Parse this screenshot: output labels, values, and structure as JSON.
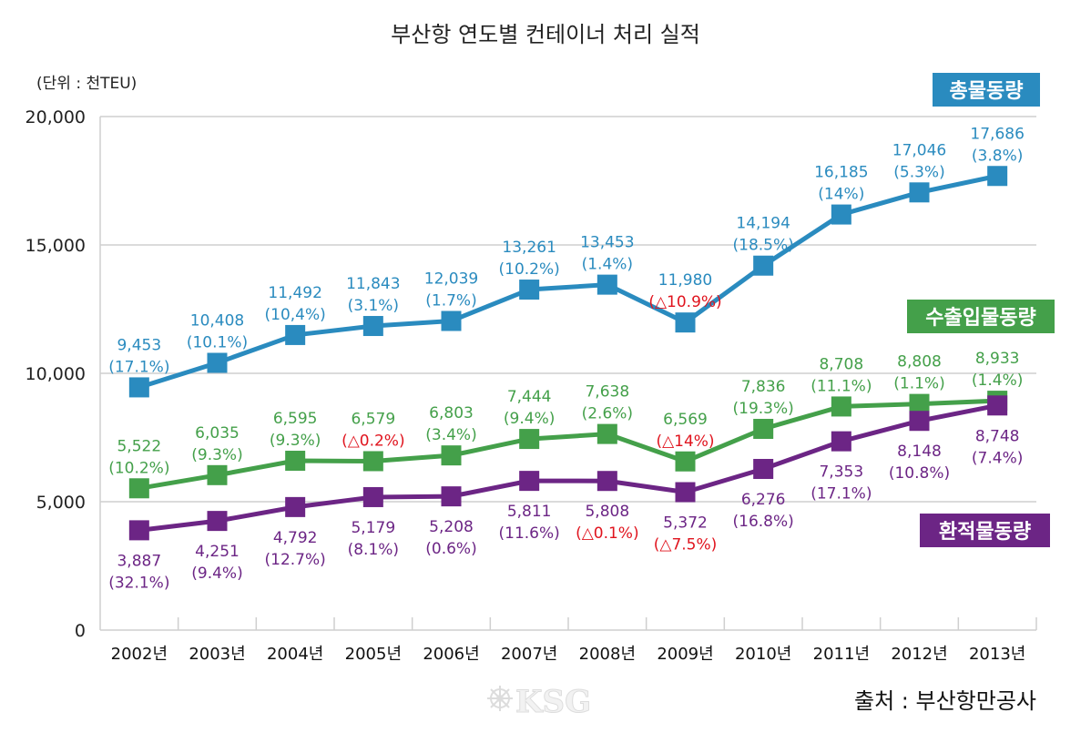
{
  "chart_data": {
    "type": "line",
    "title": "부산항 연도별 컨테이너 처리 실적",
    "unit_label": "(단위 : 천TEU)",
    "xlabel": "",
    "ylabel": "",
    "ylim": [
      0,
      20000
    ],
    "yticks": [
      0,
      5000,
      10000,
      15000,
      20000
    ],
    "ytick_labels": [
      "0",
      "5,000",
      "10,000",
      "15,000",
      "20,000"
    ],
    "grid": true,
    "categories": [
      "2002년",
      "2003년",
      "2004년",
      "2005년",
      "2006년",
      "2007년",
      "2008년",
      "2009년",
      "2010년",
      "2011년",
      "2012년",
      "2013년"
    ],
    "negative_color": "#e0141e",
    "series": [
      {
        "name": "총물동량",
        "color": "#2a8bbf",
        "label_position": "above",
        "values": [
          9453,
          10408,
          11492,
          11843,
          12039,
          13261,
          13453,
          11980,
          14194,
          16185,
          17046,
          17686
        ],
        "value_labels": [
          "9,453",
          "10,408",
          "11,492",
          "11,843",
          "12,039",
          "13,261",
          "13,453",
          "11,980",
          "14,194",
          "16,185",
          "17,046",
          "17,686"
        ],
        "growth_labels": [
          "(17.1%)",
          "(10.1%)",
          "(10,4%)",
          "(3.1%)",
          "(1.7%)",
          "(10.2%)",
          "(1.4%)",
          "(△10.9%)",
          "(18.5%)",
          "(14%)",
          "(5.3%)",
          "(3.8%)"
        ],
        "growth_negative": [
          false,
          false,
          false,
          false,
          false,
          false,
          false,
          true,
          false,
          false,
          false,
          false
        ]
      },
      {
        "name": "수출입물동량",
        "color": "#44a04a",
        "label_position": "above",
        "values": [
          5522,
          6035,
          6595,
          6579,
          6803,
          7444,
          7638,
          6569,
          7836,
          8708,
          8808,
          8933
        ],
        "value_labels": [
          "5,522",
          "6,035",
          "6,595",
          "6,579",
          "6,803",
          "7,444",
          "7,638",
          "6,569",
          "7,836",
          "8,708",
          "8,808",
          "8,933"
        ],
        "growth_labels": [
          "(10.2%)",
          "(9.3%)",
          "(9.3%)",
          "(△0.2%)",
          "(3.4%)",
          "(9.4%)",
          "(2.6%)",
          "(△14%)",
          "(19.3%)",
          "(11.1%)",
          "(1.1%)",
          "(1.4%)"
        ],
        "growth_negative": [
          false,
          false,
          false,
          true,
          false,
          false,
          false,
          true,
          false,
          false,
          false,
          false
        ]
      },
      {
        "name": "환적물동량",
        "color": "#6c2585",
        "label_position": "below",
        "values": [
          3887,
          4251,
          4792,
          5179,
          5208,
          5811,
          5808,
          5372,
          6276,
          7353,
          8148,
          8748
        ],
        "value_labels": [
          "3,887",
          "4,251",
          "4,792",
          "5,179",
          "5,208",
          "5,811",
          "5,808",
          "5,372",
          "6,276",
          "7,353",
          "8,148",
          "8,748"
        ],
        "growth_labels": [
          "(32.1%)",
          "(9.4%)",
          "(12.7%)",
          "(8.1%)",
          "(0.6%)",
          "(11.6%)",
          "(△0.1%)",
          "(△7.5%)",
          "(16.8%)",
          "(17.1%)",
          "(10.8%)",
          "(7.4%)"
        ],
        "growth_negative": [
          false,
          false,
          false,
          false,
          false,
          false,
          true,
          true,
          false,
          false,
          false,
          false
        ]
      }
    ],
    "source": "출처 : 부산항만공사",
    "watermark": "KSG"
  }
}
